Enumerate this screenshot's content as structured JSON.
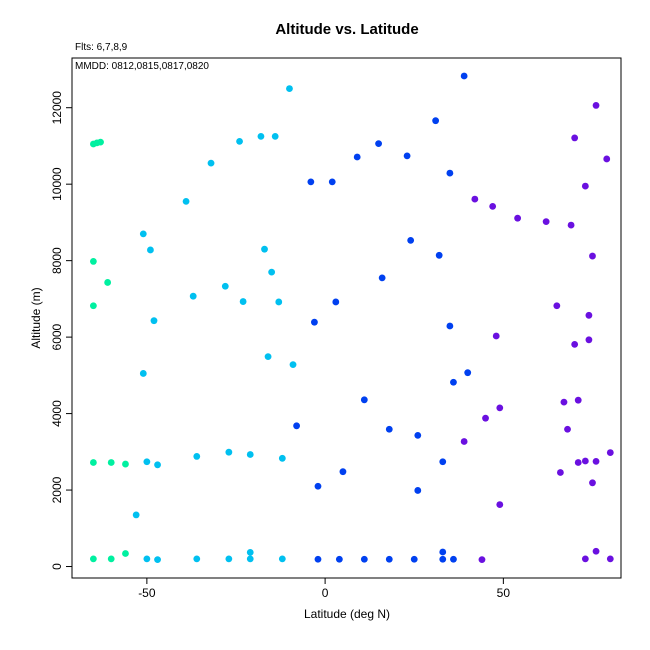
{
  "chart_data": {
    "type": "scatter",
    "title": "Altitude vs. Latitude",
    "annotations": [
      "Flts: 6,7,8,9",
      "MMDD: 0812,0815,0817,0820"
    ],
    "xlabel": "Latitude (deg N)",
    "ylabel": "Altitude (m)",
    "xlim": [
      -71,
      83
    ],
    "ylim": [
      -300,
      13300
    ],
    "xticks": [
      -50,
      0,
      50
    ],
    "yticks": [
      0,
      2000,
      4000,
      6000,
      8000,
      10000,
      12000
    ],
    "grid": false,
    "legend": "none",
    "series": [
      {
        "color": "#00f0a0",
        "points": [
          [
            -65,
            11050
          ],
          [
            -64,
            11080
          ],
          [
            -63,
            11100
          ],
          [
            -65,
            7980
          ],
          [
            -65,
            6820
          ],
          [
            -61,
            7430
          ],
          [
            -65,
            2720
          ],
          [
            -60,
            2720
          ],
          [
            -56,
            2680
          ],
          [
            -65,
            200
          ],
          [
            -60,
            200
          ],
          [
            -56,
            340
          ]
        ]
      },
      {
        "color": "#00c0f0",
        "points": [
          [
            -10,
            12500
          ],
          [
            -18,
            11250
          ],
          [
            -14,
            11250
          ],
          [
            -24,
            11120
          ],
          [
            -32,
            10550
          ],
          [
            -39,
            9550
          ],
          [
            -51,
            8700
          ],
          [
            -49,
            8280
          ],
          [
            -17,
            8300
          ],
          [
            -15,
            7700
          ],
          [
            -28,
            7330
          ],
          [
            -37,
            7070
          ],
          [
            -23,
            6930
          ],
          [
            -13,
            6920
          ],
          [
            -48,
            6430
          ],
          [
            -16,
            5490
          ],
          [
            -9,
            5280
          ],
          [
            -51,
            5050
          ],
          [
            -50,
            2740
          ],
          [
            -47,
            2660
          ],
          [
            -36,
            2880
          ],
          [
            -27,
            2990
          ],
          [
            -21,
            2930
          ],
          [
            -12,
            2830
          ],
          [
            -53,
            1350
          ],
          [
            -50,
            200
          ],
          [
            -47,
            180
          ],
          [
            -36,
            200
          ],
          [
            -27,
            200
          ],
          [
            -21,
            370
          ],
          [
            -21,
            200
          ],
          [
            -12,
            200
          ]
        ]
      },
      {
        "color": "#0040f0",
        "points": [
          [
            39,
            12830
          ],
          [
            31,
            11660
          ],
          [
            15,
            11060
          ],
          [
            23,
            10740
          ],
          [
            9,
            10710
          ],
          [
            35,
            10290
          ],
          [
            -4,
            10060
          ],
          [
            2,
            10060
          ],
          [
            24,
            8530
          ],
          [
            32,
            8140
          ],
          [
            16,
            7550
          ],
          [
            3,
            6920
          ],
          [
            -3,
            6390
          ],
          [
            35,
            6290
          ],
          [
            40,
            5070
          ],
          [
            36,
            4820
          ],
          [
            11,
            4360
          ],
          [
            -8,
            3680
          ],
          [
            18,
            3590
          ],
          [
            26,
            3430
          ],
          [
            33,
            2740
          ],
          [
            5,
            2480
          ],
          [
            -2,
            2100
          ],
          [
            26,
            1990
          ],
          [
            -2,
            190
          ],
          [
            4,
            190
          ],
          [
            11,
            190
          ],
          [
            18,
            190
          ],
          [
            25,
            190
          ],
          [
            33,
            380
          ],
          [
            33,
            190
          ],
          [
            36,
            190
          ]
        ]
      },
      {
        "color": "#6a10e0",
        "points": [
          [
            76,
            12060
          ],
          [
            70,
            11210
          ],
          [
            79,
            10660
          ],
          [
            73,
            9950
          ],
          [
            42,
            9610
          ],
          [
            47,
            9420
          ],
          [
            54,
            9110
          ],
          [
            62,
            9020
          ],
          [
            69,
            8930
          ],
          [
            75,
            8120
          ],
          [
            65,
            6820
          ],
          [
            74,
            6570
          ],
          [
            48,
            6030
          ],
          [
            74,
            5930
          ],
          [
            70,
            5810
          ],
          [
            71,
            4350
          ],
          [
            67,
            4300
          ],
          [
            49,
            4150
          ],
          [
            45,
            3880
          ],
          [
            68,
            3590
          ],
          [
            39,
            3270
          ],
          [
            80,
            2980
          ],
          [
            71,
            2720
          ],
          [
            73,
            2760
          ],
          [
            76,
            2750
          ],
          [
            66,
            2460
          ],
          [
            75,
            2190
          ],
          [
            49,
            1620
          ],
          [
            76,
            400
          ],
          [
            80,
            200
          ],
          [
            73,
            200
          ],
          [
            44,
            180
          ]
        ]
      }
    ]
  }
}
